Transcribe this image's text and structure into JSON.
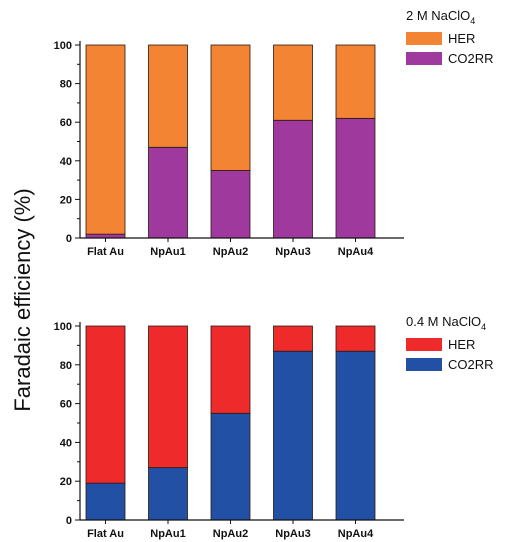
{
  "ylabel": "Faradaic efficiency (%)",
  "chart_data": [
    {
      "type": "bar",
      "stacked": true,
      "title": "2 M NaClO",
      "title_subscript": "4",
      "categories": [
        "Flat Au",
        "NpAu1",
        "NpAu2",
        "NpAu3",
        "NpAu4"
      ],
      "series": [
        {
          "name": "CO2RR",
          "values": [
            2,
            47,
            35,
            61,
            62
          ],
          "color": "#a0399e"
        },
        {
          "name": "HER",
          "values": [
            98,
            53,
            65,
            39,
            38
          ],
          "color": "#f28433"
        }
      ],
      "legend_order": [
        "HER",
        "CO2RR"
      ],
      "ylim": [
        0,
        100
      ],
      "yticks": [
        0,
        20,
        40,
        60,
        80,
        100
      ],
      "grid": false,
      "legend_position": "top-right outside"
    },
    {
      "type": "bar",
      "stacked": true,
      "title": "0.4 M NaClO",
      "title_subscript": "4",
      "categories": [
        "Flat Au",
        "NpAu1",
        "NpAu2",
        "NpAu3",
        "NpAu4"
      ],
      "series": [
        {
          "name": "CO2RR",
          "values": [
            19,
            27,
            55,
            87,
            87
          ],
          "color": "#2250a4"
        },
        {
          "name": "HER",
          "values": [
            81,
            73,
            45,
            13,
            13
          ],
          "color": "#ee2a2a"
        }
      ],
      "legend_order": [
        "HER",
        "CO2RR"
      ],
      "ylim": [
        0,
        100
      ],
      "yticks": [
        0,
        20,
        40,
        60,
        80,
        100
      ],
      "grid": false,
      "legend_position": "top-right outside"
    }
  ]
}
